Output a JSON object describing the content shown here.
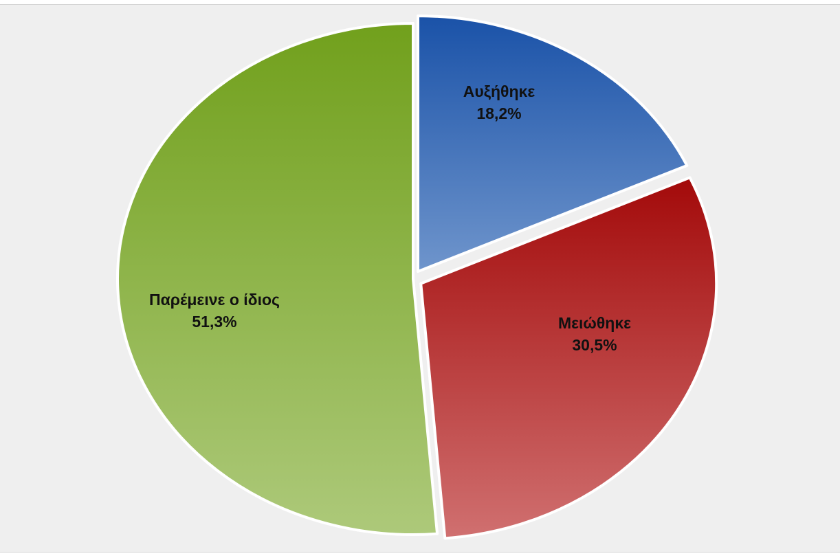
{
  "chart_data": {
    "type": "pie",
    "title": "",
    "start_angle_deg": 0,
    "direction": "clockwise",
    "exploded": true,
    "slices": [
      {
        "label": "Αυξήθηκε",
        "value": 18.2,
        "value_label": "18,2%",
        "color_top": "#1a52a8",
        "color_bottom": "#6f95cc"
      },
      {
        "label": "Μειώθηκε",
        "value": 30.5,
        "value_label": "30,5%",
        "color_top": "#a30a0a",
        "color_bottom": "#d07070"
      },
      {
        "label": "Παρέμεινε ο ίδιος",
        "value": 51.3,
        "value_label": "51,3%",
        "color_top": "#71a01c",
        "color_bottom": "#adc97a"
      }
    ]
  }
}
